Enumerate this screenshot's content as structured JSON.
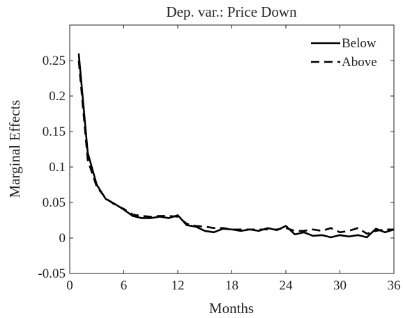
{
  "chart_data": {
    "type": "line",
    "title": "Dep. var.: Price Down",
    "xlabel": "Months",
    "ylabel": "Marginal Effects",
    "x": [
      1,
      2,
      3,
      4,
      5,
      6,
      7,
      8,
      9,
      10,
      11,
      12,
      13,
      14,
      15,
      16,
      17,
      18,
      19,
      20,
      21,
      22,
      23,
      24,
      25,
      26,
      27,
      28,
      29,
      30,
      31,
      32,
      33,
      34,
      35,
      36
    ],
    "series": [
      {
        "name": "Below",
        "color": "#000000",
        "dash": "solid",
        "values": [
          0.26,
          0.12,
          0.075,
          0.055,
          0.048,
          0.04,
          0.031,
          0.028,
          0.028,
          0.03,
          0.028,
          0.032,
          0.018,
          0.016,
          0.01,
          0.008,
          0.013,
          0.012,
          0.01,
          0.012,
          0.01,
          0.014,
          0.011,
          0.017,
          0.005,
          0.008,
          0.003,
          0.004,
          0.001,
          0.004,
          0.002,
          0.004,
          0.001,
          0.013,
          0.008,
          0.012
        ]
      },
      {
        "name": "Above",
        "color": "#000000",
        "dash": "dashed",
        "values": [
          0.25,
          0.11,
          0.072,
          0.056,
          0.047,
          0.041,
          0.033,
          0.031,
          0.03,
          0.031,
          0.031,
          0.03,
          0.02,
          0.017,
          0.016,
          0.014,
          0.014,
          0.012,
          0.012,
          0.012,
          0.012,
          0.012,
          0.012,
          0.014,
          0.01,
          0.01,
          0.012,
          0.01,
          0.014,
          0.008,
          0.01,
          0.014,
          0.006,
          0.01,
          0.012,
          0.012
        ]
      }
    ],
    "xlim": [
      0,
      36
    ],
    "xticks": [
      0,
      6,
      12,
      18,
      24,
      30,
      36
    ],
    "ylim": [
      -0.05,
      0.3
    ],
    "yticks": [
      -0.05,
      0,
      0.05,
      0.1,
      0.15,
      0.2,
      0.25
    ],
    "grid": false,
    "legend": "upper right"
  }
}
